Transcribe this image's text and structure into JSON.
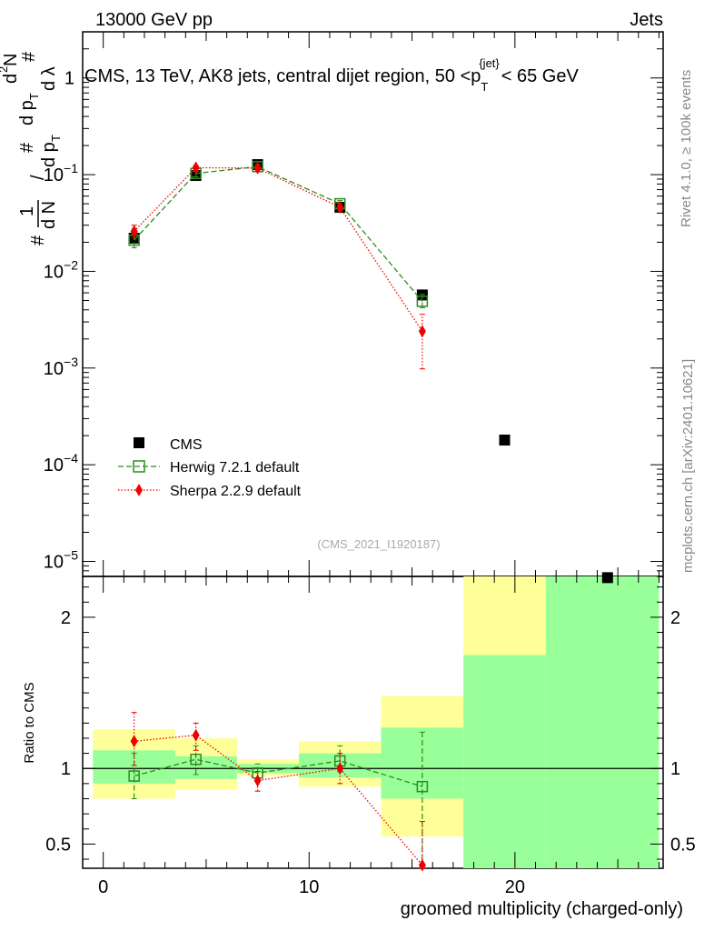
{
  "header": {
    "left_label": "13000 GeV pp",
    "right_label": "Jets",
    "title_main": "CMS, 13 TeV, AK8 jets, central dijet region, 50 <p",
    "title_sub": "T",
    "title_sup": "{jet}",
    "title_tail": "< 65 GeV"
  },
  "side_labels": {
    "rivet": "Rivet 4.1.0, ≥ 100k events",
    "mcplots": "mcplots.cern.ch [arXiv:2401.10621]"
  },
  "colors": {
    "cms": "#000000",
    "herwig": "#2e8b1e",
    "sherpa": "#ee0000",
    "band_yellow": "#ffff99",
    "band_green": "#99ff99"
  },
  "chart_data": [
    {
      "type": "scatter",
      "panel": "main",
      "y_scale": "log",
      "ylim": [
        7e-06,
        3
      ],
      "xlim": [
        -1,
        27.2
      ],
      "y_ticks": [
        {
          "v": 1,
          "label": "1"
        },
        {
          "v": 0.1,
          "label": "10",
          "exp": "−1"
        },
        {
          "v": 0.01,
          "label": "10",
          "exp": "−2"
        },
        {
          "v": 0.001,
          "label": "10",
          "exp": "−3"
        },
        {
          "v": 0.0001,
          "label": "10",
          "exp": "−4"
        },
        {
          "v": 1e-05,
          "label": "10",
          "exp": "−5"
        }
      ],
      "ylabel_parts": {
        "hash": "#",
        "one": "1",
        "dN": "d N",
        "slash": "/",
        "dpT": "d p",
        "T": "T",
        "d2N": "d",
        "two": "2",
        "N": "N",
        "dlambda": "d λ"
      },
      "watermark": "(CMS_2021_I1920187)",
      "legend": [
        "CMS",
        "Herwig 7.2.1 default",
        "Sherpa 2.2.9 default"
      ],
      "series": [
        {
          "name": "CMS",
          "marker": "square",
          "x": [
            1.5,
            4.5,
            7.5,
            11.5,
            15.5,
            19.5,
            24.5
          ],
          "y": [
            0.022,
            0.098,
            0.127,
            0.046,
            0.0057,
            0.00018,
            6.8e-06
          ]
        },
        {
          "name": "Herwig 7.2.1 default",
          "marker": "open-square",
          "line": "dashed",
          "x": [
            1.5,
            4.5,
            7.5,
            11.5,
            15.5
          ],
          "y": [
            0.021,
            0.103,
            0.121,
            0.05,
            0.0049
          ],
          "err_lo": [
            0.0175,
            0.095,
            0.112,
            0.045,
            0.0042
          ],
          "err_hi": [
            0.024,
            0.108,
            0.128,
            0.054,
            0.0058
          ]
        },
        {
          "name": "Sherpa 2.2.9 default",
          "marker": "diamond",
          "line": "dotted",
          "x": [
            1.5,
            4.5,
            7.5,
            11.5,
            15.5
          ],
          "y": [
            0.026,
            0.118,
            0.117,
            0.046,
            0.0024
          ],
          "err_lo": [
            0.0225,
            0.11,
            0.109,
            0.042,
            0.00098
          ],
          "err_hi": [
            0.03,
            0.124,
            0.124,
            0.05,
            0.0036
          ]
        }
      ]
    },
    {
      "type": "scatter",
      "panel": "ratio",
      "ylabel": "Ratio to CMS",
      "xlabel": "groomed multiplicity (charged-only)",
      "ylim": [
        0.34,
        2.27
      ],
      "xlim": [
        -1,
        27.2
      ],
      "x_ticks": [
        0,
        10,
        20
      ],
      "y_ticks": [
        {
          "v": 0.5,
          "label": "0.5"
        },
        {
          "v": 1,
          "label": "1"
        },
        {
          "v": 2,
          "label": "2"
        }
      ],
      "bands": [
        {
          "x0": -0.5,
          "x1": 3.5,
          "y_lo": 0.8,
          "y_hi": 1.26,
          "g_lo": 0.9,
          "g_hi": 1.12
        },
        {
          "x0": 3.5,
          "x1": 6.5,
          "y_lo": 0.86,
          "y_hi": 1.2,
          "g_lo": 0.93,
          "g_hi": 1.08
        },
        {
          "x0": 6.5,
          "x1": 9.5,
          "y_lo": 0.95,
          "y_hi": 1.06,
          "g_lo": 0.97,
          "g_hi": 1.03
        },
        {
          "x0": 9.5,
          "x1": 13.5,
          "y_lo": 0.88,
          "y_hi": 1.18,
          "g_lo": 0.94,
          "g_hi": 1.1
        },
        {
          "x0": 13.5,
          "x1": 17.5,
          "y_lo": 0.55,
          "y_hi": 1.48,
          "g_lo": 0.8,
          "g_hi": 1.27
        },
        {
          "x0": 17.5,
          "x1": 21.5,
          "y_lo": 0.34,
          "y_hi": 2.27,
          "g_lo": 0.34,
          "g_hi": 1.75
        },
        {
          "x0": 21.5,
          "x1": 27.0,
          "y_lo": 0.34,
          "y_hi": 2.27,
          "g_lo": 0.34,
          "g_hi": 2.27
        }
      ],
      "series": [
        {
          "name": "Herwig 7.2.1 default",
          "x": [
            1.5,
            4.5,
            7.5,
            11.5,
            15.5
          ],
          "y": [
            0.95,
            1.06,
            0.97,
            1.05,
            0.88
          ],
          "err_lo": [
            0.8,
            0.96,
            0.92,
            0.98,
            0.34
          ],
          "err_hi": [
            1.1,
            1.15,
            1.03,
            1.15,
            1.24
          ]
        },
        {
          "name": "Sherpa 2.2.9 default",
          "x": [
            1.5,
            4.5,
            7.5,
            11.5,
            15.5
          ],
          "y": [
            1.18,
            1.22,
            0.92,
            1.0,
            0.36
          ],
          "err_lo": [
            1.02,
            1.12,
            0.85,
            0.9,
            0.34
          ],
          "err_hi": [
            1.37,
            1.3,
            0.98,
            1.1,
            0.65
          ]
        }
      ]
    }
  ]
}
